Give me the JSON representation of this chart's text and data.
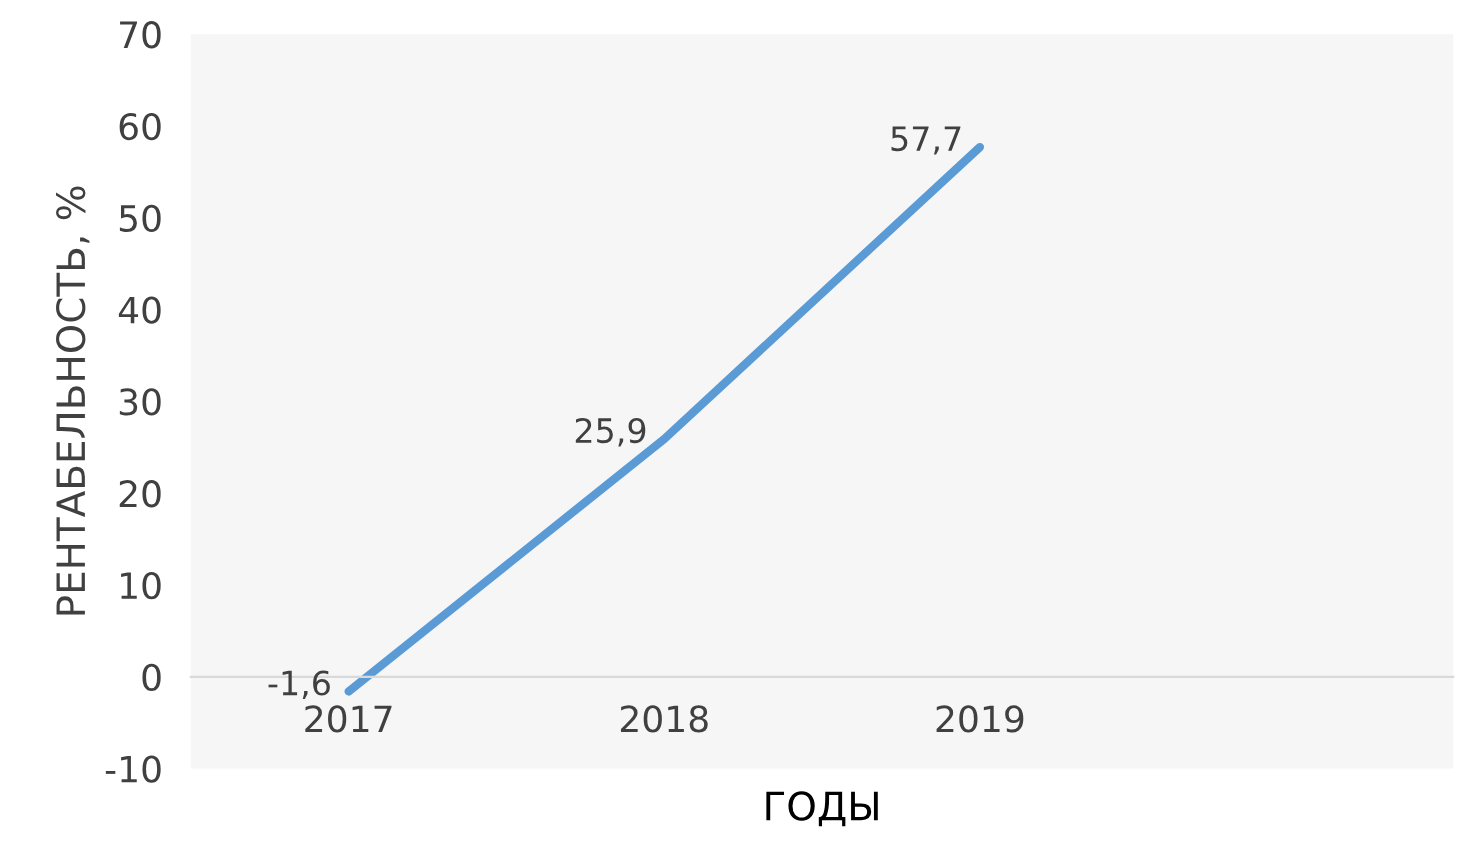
{
  "chart_data": {
    "type": "line",
    "categories": [
      "2017",
      "2018",
      "2019",
      null
    ],
    "series": [
      {
        "color": "#5b9bd5",
        "values": [
          -1.6,
          25.9,
          57.7,
          null
        ],
        "value_labels": [
          "-1,6",
          "25,9",
          "57,7",
          null
        ]
      }
    ],
    "xlabel": "ГОДЫ",
    "ylabel": "РЕНТАБЕЛЬНОСТЬ, %",
    "ylim": [
      -10,
      70
    ],
    "yticks": [
      -10,
      0,
      10,
      20,
      30,
      40,
      50,
      60,
      70
    ],
    "grid": false,
    "legend": false,
    "marker": "none",
    "line_style": "solid"
  }
}
